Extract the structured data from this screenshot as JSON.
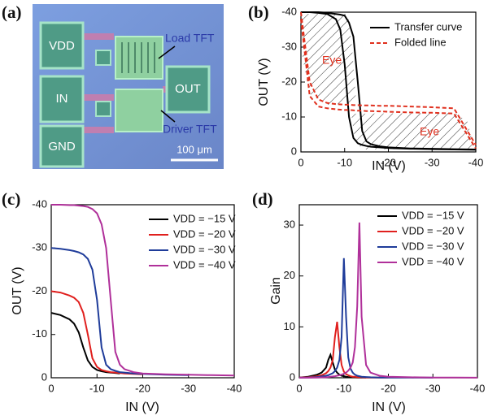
{
  "micrograph": {
    "panel": "(a)",
    "pads": [
      "VDD",
      "IN",
      "GND",
      "OUT"
    ],
    "load_label": "Load TFT",
    "driver_label": "Driver TFT",
    "scale_bar": "100 μm"
  },
  "chart_data": [
    {
      "type": "line",
      "panel": "(b)",
      "x_label": "IN (V)",
      "y_label": "OUT (V)",
      "x": [
        0,
        -2,
        -4,
        -6,
        -8,
        -9,
        -10,
        -11,
        -12,
        -13,
        -14,
        -15,
        -16,
        -18,
        -20,
        -25,
        -30,
        -35,
        -40
      ],
      "xlim": [
        0,
        -40
      ],
      "xticks": [
        0,
        -10,
        -20,
        -30,
        -40
      ],
      "ylim": [
        0,
        -40
      ],
      "yticks": [
        0,
        -10,
        -20,
        -30,
        -40
      ],
      "legend": "upper right",
      "annotations": [
        "Eye",
        "Eye"
      ],
      "series": [
        {
          "name": "Transfer curve",
          "color": "#000000",
          "style": "solid",
          "values": [
            -40,
            -40,
            -39.8,
            -39.5,
            -38,
            -35,
            -25,
            -10,
            -4,
            -2.5,
            -2,
            -1.7,
            -1.5,
            -1.3,
            -1.1,
            -0.9,
            -0.8,
            -0.7,
            -0.6
          ]
        },
        {
          "color": "#000000",
          "style": "solid",
          "values": [
            -40,
            -40,
            -40,
            -39.8,
            -39.5,
            -39.3,
            -39,
            -37,
            -33,
            -20,
            -6,
            -3,
            -2.2,
            -1.6,
            -1.3,
            -1,
            -0.9,
            -0.8,
            -0.7
          ]
        },
        {
          "name": "Folded line",
          "color": "#e0301e",
          "style": "dashed",
          "values": [
            -40,
            -20,
            -15,
            -14,
            -13.7,
            -13.6,
            -13.5,
            -13.5,
            -13.4,
            -13.4,
            -13.3,
            -13.3,
            -13.3,
            -13.2,
            -13.2,
            -13,
            -12.8,
            -12.5,
            -2
          ]
        },
        {
          "color": "#e0301e",
          "style": "dashed",
          "values": [
            -38,
            -16,
            -13,
            -12.5,
            -12.2,
            -12.1,
            -12,
            -12,
            -11.9,
            -11.8,
            -11.8,
            -11.7,
            -11.7,
            -11.6,
            -11.5,
            -11.3,
            -11.2,
            -11,
            -1
          ]
        }
      ]
    },
    {
      "type": "line",
      "panel": "(c)",
      "x_label": "IN (V)",
      "y_label": "OUT (V)",
      "x": [
        0,
        -2,
        -4,
        -5,
        -6,
        -7,
        -8,
        -9,
        -10,
        -11,
        -12,
        -13,
        -14,
        -15,
        -16,
        -18,
        -20,
        -25,
        -30,
        -35,
        -40
      ],
      "xlim": [
        0,
        -40
      ],
      "xticks": [
        0,
        -10,
        -20,
        -30,
        -40
      ],
      "ylim": [
        0,
        -40
      ],
      "yticks": [
        0,
        -10,
        -20,
        -30,
        -40
      ],
      "legend": "upper right",
      "series": [
        {
          "name": "VDD = −15 V",
          "color": "#000000",
          "style": "solid",
          "values": [
            -15,
            -14.5,
            -13.5,
            -12.5,
            -10.5,
            -7,
            -4,
            -2.5,
            -1.8,
            -1.5,
            -1.3,
            -1.2,
            -1.1,
            -1,
            null,
            null,
            null,
            null,
            null,
            null,
            null
          ]
        },
        {
          "name": "VDD = −20 V",
          "color": "#e0201e",
          "style": "solid",
          "values": [
            -20,
            -19.7,
            -19,
            -18.5,
            -17.5,
            -15,
            -10,
            -4.5,
            -2.5,
            -1.8,
            -1.5,
            -1.3,
            -1.2,
            -1.1,
            -1,
            -0.9,
            -0.8,
            null,
            null,
            null,
            null
          ]
        },
        {
          "name": "VDD = −30 V",
          "color": "#1f3c9a",
          "style": "solid",
          "values": [
            -30,
            -29.8,
            -29.5,
            -29.3,
            -29,
            -28.5,
            -27.5,
            -25,
            -18,
            -7,
            -3,
            -2,
            -1.6,
            -1.3,
            -1.2,
            -1,
            -0.9,
            -0.7,
            -0.6,
            null,
            null
          ]
        },
        {
          "name": "VDD = −40 V",
          "color": "#b0309a",
          "style": "solid",
          "values": [
            -40,
            -40,
            -39.9,
            -39.9,
            -39.8,
            -39.7,
            -39.5,
            -39,
            -38,
            -35.5,
            -30,
            -18,
            -6,
            -3,
            -2,
            -1.3,
            -1,
            -0.8,
            -0.7,
            -0.6,
            -0.5
          ]
        }
      ]
    },
    {
      "type": "line",
      "panel": "(d)",
      "x_label": "IN (V)",
      "y_label": "Gain",
      "x": [
        0,
        -2,
        -4,
        -5,
        -6,
        -6.5,
        -7,
        -7.5,
        -8,
        -8.5,
        -9,
        -9.5,
        -10,
        -10.5,
        -11,
        -11.5,
        -12,
        -12.5,
        -13,
        -13.5,
        -14,
        -15,
        -16,
        -18,
        -20,
        -25,
        -30,
        -35,
        -40
      ],
      "xlim": [
        0,
        -40
      ],
      "xticks": [
        0,
        -10,
        -20,
        -30,
        -40
      ],
      "ylim": [
        0,
        34
      ],
      "yticks": [
        0,
        10,
        20,
        30
      ],
      "legend": "upper right",
      "series": [
        {
          "name": "VDD = −15 V",
          "color": "#000000",
          "style": "solid",
          "values": [
            0.05,
            0.2,
            0.6,
            1,
            2,
            3.5,
            4.5,
            3,
            1.6,
            1,
            0.6,
            0.4,
            0.3,
            0.2,
            0.15,
            0.1,
            0.1,
            0.1,
            0.05,
            0.05,
            0.05,
            0.05,
            null,
            null,
            null,
            null,
            null,
            null,
            null
          ]
        },
        {
          "name": "VDD = −20 V",
          "color": "#e0201e",
          "style": "solid",
          "values": [
            0.05,
            0.1,
            0.3,
            0.5,
            0.9,
            1.3,
            2,
            3.5,
            8,
            11,
            6,
            2.5,
            1.2,
            0.7,
            0.5,
            0.3,
            0.2,
            0.2,
            0.1,
            0.1,
            0.1,
            0.05,
            0.05,
            0.05,
            0.05,
            null,
            null,
            null,
            null
          ]
        },
        {
          "name": "VDD = −30 V",
          "color": "#1f3c9a",
          "style": "solid",
          "values": [
            0.02,
            0.05,
            0.15,
            0.25,
            0.4,
            0.5,
            0.7,
            0.9,
            1.3,
            2,
            3.5,
            8,
            23.5,
            12,
            4,
            1.8,
            1,
            0.6,
            0.4,
            0.3,
            0.2,
            0.15,
            0.1,
            0.05,
            0.05,
            0.03,
            0.02,
            null,
            null
          ]
        },
        {
          "name": "VDD = −40 V",
          "color": "#b0309a",
          "style": "solid",
          "values": [
            0.01,
            0.02,
            0.05,
            0.08,
            0.1,
            0.15,
            0.2,
            0.25,
            0.3,
            0.4,
            0.5,
            0.6,
            0.8,
            1,
            1.4,
            2,
            3,
            6,
            14,
            30.5,
            12,
            2.5,
            1,
            0.4,
            0.2,
            0.1,
            0.05,
            0.03,
            0.02
          ]
        }
      ]
    }
  ]
}
